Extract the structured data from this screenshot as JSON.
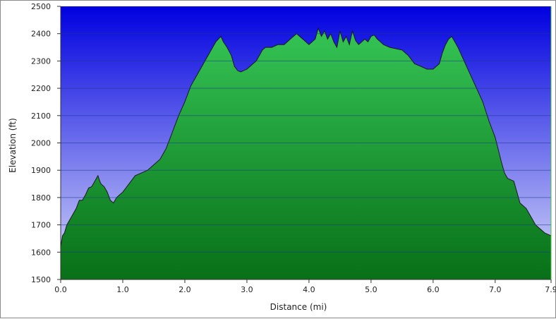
{
  "chart_data": {
    "type": "area",
    "title": "",
    "xlabel": "Distance    (mi)",
    "ylabel": "Elevation (ft)",
    "xlim": [
      0,
      7.9
    ],
    "ylim": [
      1500,
      2500
    ],
    "x_ticks": [
      "0.0",
      "1.0",
      "2.0",
      "3.0",
      "4.0",
      "5.0",
      "6.0",
      "7.0",
      "7.9"
    ],
    "x_tick_values": [
      0,
      1,
      2,
      3,
      4,
      5,
      6,
      7,
      7.9
    ],
    "y_ticks": [
      "1500",
      "1600",
      "1700",
      "1800",
      "1900",
      "2000",
      "2100",
      "2200",
      "2300",
      "2400",
      "2500"
    ],
    "y_tick_values": [
      1500,
      1600,
      1700,
      1800,
      1900,
      2000,
      2100,
      2200,
      2300,
      2400,
      2500
    ],
    "grid": "horizontal",
    "colors": {
      "sky_top": "#0000e0",
      "sky_bottom": "#d8dcf8",
      "fill_top": "#35c455",
      "fill_bottom": "#087018",
      "outline": "#1a1a1a"
    },
    "series": [
      {
        "x": [
          0.0,
          0.03,
          0.06,
          0.1,
          0.15,
          0.2,
          0.25,
          0.3,
          0.35,
          0.4,
          0.45,
          0.5,
          0.55,
          0.6,
          0.63,
          0.65,
          0.7,
          0.75,
          0.8,
          0.85,
          0.9,
          0.95,
          1.0,
          1.1,
          1.2,
          1.3,
          1.4,
          1.5,
          1.6,
          1.7,
          1.8,
          1.9,
          2.0,
          2.1,
          2.2,
          2.3,
          2.4,
          2.5,
          2.58,
          2.62,
          2.68,
          2.75,
          2.8,
          2.85,
          2.9,
          2.95,
          3.0,
          3.05,
          3.1,
          3.15,
          3.2,
          3.25,
          3.3,
          3.4,
          3.5,
          3.6,
          3.7,
          3.8,
          3.9,
          4.0,
          4.1,
          4.15,
          4.2,
          4.25,
          4.3,
          4.35,
          4.4,
          4.45,
          4.5,
          4.55,
          4.6,
          4.65,
          4.7,
          4.75,
          4.8,
          4.85,
          4.9,
          4.95,
          5.0,
          5.05,
          5.1,
          5.15,
          5.2,
          5.3,
          5.4,
          5.5,
          5.6,
          5.7,
          5.8,
          5.9,
          6.0,
          6.05,
          6.1,
          6.15,
          6.2,
          6.25,
          6.3,
          6.35,
          6.4,
          6.5,
          6.6,
          6.7,
          6.8,
          6.9,
          7.0,
          7.1,
          7.15,
          7.2,
          7.3,
          7.35,
          7.4,
          7.45,
          7.5,
          7.55,
          7.6,
          7.65,
          7.7,
          7.75,
          7.8,
          7.85,
          7.9
        ],
        "values": [
          1620,
          1660,
          1670,
          1700,
          1720,
          1740,
          1760,
          1790,
          1790,
          1810,
          1835,
          1840,
          1860,
          1880,
          1860,
          1850,
          1840,
          1820,
          1790,
          1780,
          1800,
          1810,
          1820,
          1850,
          1880,
          1890,
          1900,
          1920,
          1940,
          1980,
          2040,
          2100,
          2150,
          2210,
          2250,
          2290,
          2330,
          2370,
          2390,
          2370,
          2350,
          2320,
          2280,
          2265,
          2260,
          2265,
          2270,
          2280,
          2290,
          2300,
          2320,
          2340,
          2350,
          2350,
          2360,
          2360,
          2380,
          2400,
          2380,
          2360,
          2380,
          2420,
          2390,
          2410,
          2380,
          2400,
          2370,
          2350,
          2410,
          2370,
          2390,
          2360,
          2410,
          2375,
          2360,
          2370,
          2380,
          2370,
          2390,
          2395,
          2380,
          2370,
          2360,
          2350,
          2345,
          2340,
          2320,
          2290,
          2280,
          2270,
          2270,
          2280,
          2290,
          2330,
          2360,
          2380,
          2390,
          2370,
          2350,
          2300,
          2250,
          2200,
          2150,
          2080,
          2020,
          1930,
          1890,
          1870,
          1860,
          1820,
          1780,
          1770,
          1760,
          1740,
          1720,
          1700,
          1690,
          1680,
          1670,
          1665,
          1660
        ]
      }
    ]
  }
}
